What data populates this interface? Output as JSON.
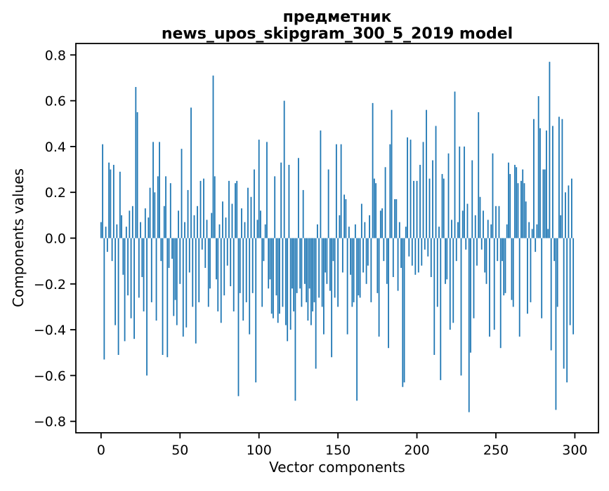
{
  "chart_data": {
    "type": "bar",
    "title_line1": "предметник",
    "title_line2": "news_upos_skipgram_300_5_2019 model",
    "xlabel": "Vector components",
    "ylabel": "Components values",
    "bar_color": "#1f77b4",
    "axis_color": "#000000",
    "background_color": "#ffffff",
    "grid": false,
    "legend": "none",
    "xticks": [
      0,
      50,
      100,
      150,
      200,
      250,
      300
    ],
    "yticks": [
      -0.8,
      -0.6,
      -0.4,
      -0.2,
      0.0,
      0.2,
      0.4,
      0.6,
      0.8
    ],
    "xlim": [
      -15.95,
      314.95
    ],
    "ylim": [
      -0.85,
      0.85
    ],
    "x_range": [
      0,
      299
    ],
    "n_components": 300,
    "values": [
      0.07,
      0.41,
      -0.53,
      0.05,
      -0.06,
      0.33,
      0.3,
      -0.1,
      0.32,
      -0.38,
      0.06,
      -0.51,
      0.29,
      0.1,
      -0.16,
      -0.45,
      0.05,
      -0.25,
      0.12,
      -0.35,
      0.14,
      -0.44,
      0.66,
      0.55,
      -0.26,
      0.07,
      -0.17,
      -0.32,
      0.13,
      -0.6,
      0.09,
      0.22,
      -0.28,
      0.42,
      0.2,
      -0.36,
      0.27,
      0.42,
      -0.1,
      -0.51,
      0.14,
      0.27,
      -0.52,
      -0.13,
      0.24,
      -0.09,
      -0.34,
      -0.27,
      -0.38,
      0.12,
      -0.2,
      0.39,
      -0.43,
      0.07,
      -0.39,
      0.21,
      -0.15,
      0.57,
      -0.3,
      0.1,
      -0.46,
      0.14,
      -0.28,
      0.25,
      -0.05,
      0.26,
      -0.13,
      0.08,
      -0.3,
      -0.22,
      0.11,
      0.71,
      0.27,
      -0.18,
      -0.32,
      0.06,
      -0.37,
      0.16,
      -0.25,
      0.09,
      -0.12,
      0.25,
      -0.21,
      0.15,
      -0.32,
      0.24,
      0.25,
      -0.69,
      -0.24,
      0.13,
      -0.36,
      0.07,
      -0.28,
      0.22,
      -0.42,
      0.18,
      -0.24,
      0.3,
      -0.63,
      0.08,
      0.43,
      0.12,
      -0.3,
      -0.1,
      0.06,
      0.42,
      -0.22,
      -0.18,
      -0.33,
      -0.35,
      0.27,
      -0.25,
      -0.37,
      -0.33,
      0.33,
      -0.3,
      0.6,
      -0.38,
      -0.45,
      0.32,
      -0.4,
      -0.22,
      -0.32,
      -0.71,
      -0.24,
      0.35,
      -0.22,
      -0.3,
      0.21,
      -0.2,
      -0.28,
      -0.36,
      -0.22,
      -0.38,
      -0.32,
      -0.28,
      -0.57,
      0.06,
      -0.26,
      0.47,
      -0.3,
      -0.42,
      -0.15,
      -0.2,
      0.3,
      -0.23,
      -0.52,
      -0.1,
      -0.26,
      0.41,
      -0.3,
      0.1,
      0.41,
      -0.15,
      0.19,
      0.17,
      -0.42,
      0.05,
      -0.16,
      -0.3,
      -0.28,
      0.06,
      -0.71,
      -0.25,
      -0.26,
      0.15,
      -0.15,
      0.07,
      -0.2,
      -0.12,
      0.1,
      -0.28,
      0.59,
      0.26,
      0.24,
      -0.24,
      -0.43,
      0.12,
      0.13,
      -0.1,
      0.31,
      -0.2,
      -0.48,
      0.41,
      0.56,
      -0.17,
      0.17,
      0.17,
      -0.23,
      0.07,
      -0.13,
      -0.65,
      -0.63,
      0.05,
      0.44,
      -0.08,
      0.43,
      -0.12,
      0.25,
      -0.16,
      0.25,
      -0.15,
      0.32,
      -0.12,
      0.42,
      -0.05,
      0.56,
      -0.08,
      0.26,
      -0.17,
      0.34,
      -0.51,
      0.49,
      -0.3,
      0.05,
      -0.62,
      0.28,
      0.26,
      -0.2,
      -0.18,
      0.37,
      -0.4,
      0.08,
      -0.37,
      0.64,
      -0.1,
      0.07,
      0.4,
      -0.6,
      0.12,
      0.4,
      -0.05,
      0.15,
      -0.76,
      -0.5,
      0.34,
      -0.35,
      0.1,
      -0.12,
      0.55,
      0.18,
      -0.05,
      0.12,
      -0.15,
      -0.2,
      0.08,
      -0.43,
      0.06,
      0.37,
      -0.4,
      0.14,
      -0.1,
      0.14,
      -0.48,
      -0.1,
      -0.25,
      -0.24,
      0.06,
      0.33,
      0.28,
      -0.27,
      -0.3,
      0.32,
      0.31,
      0.24,
      -0.43,
      0.25,
      0.3,
      0.24,
      0.16,
      -0.33,
      0.07,
      -0.28,
      0.04,
      0.52,
      -0.06,
      0.06,
      0.62,
      0.48,
      -0.35,
      0.3,
      0.3,
      0.47,
      0.04,
      0.77,
      -0.49,
      0.49,
      -0.1,
      -0.75,
      -0.3,
      0.53,
      0.1,
      0.52,
      -0.57,
      0.2,
      -0.63,
      0.23,
      -0.38,
      0.26,
      -0.42
    ]
  }
}
